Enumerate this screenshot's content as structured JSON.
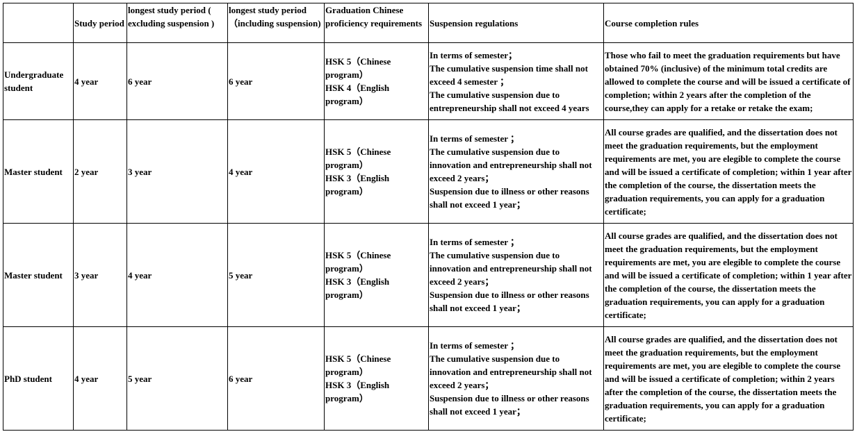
{
  "headers": [
    "",
    "Study period",
    "longest study period ( excluding suspension )",
    "longest study period （including suspension)",
    "Graduation Chinese proficiency requirements",
    "Suspension regulations",
    "Course completion rules"
  ],
  "rows": [
    {
      "type": "Undergraduate student",
      "study": "4 year",
      "excl": "6 year",
      "incl": "6 year",
      "hsk": [
        "HSK 5（Chinese program）",
        "HSK 4（English program）"
      ],
      "suspension": [
        "In terms of semester；",
        "The cumulative suspension time shall not exceed 4 semester ；",
        "The cumulative suspension due to entrepreneurship shall not exceed 4 years"
      ],
      "completion": "Those who fail to meet the graduation requirements but have obtained 70% (inclusive) of the minimum total credits are allowed to complete the course and will be issued a certificate of completion; within 2 years after the completion of the course,they can apply for a retake or retake the exam;"
    },
    {
      "type": "Master student",
      "study": "2 year",
      "excl": "3 year",
      "incl": "4 year",
      "hsk": [
        "HSK 5（Chinese program）",
        "HSK 3（English program）"
      ],
      "suspension": [
        "In terms of semester ；",
        "The cumulative suspension due to innovation and entrepreneurship shall not exceed 2 years；",
        "Suspension due to illness or other reasons shall not exceed 1 year；"
      ],
      "completion": "All course grades are qualified, and the dissertation does not meet the graduation requirements, but the employment requirements are met, you are elegible to complete the course and will be issued a certificate of completion; within 1 year after the completion of the course, the dissertation meets the graduation requirements,  you can apply for a graduation certificate;"
    },
    {
      "type": "Master student",
      "study": "3 year",
      "excl": "4 year",
      "incl": "5 year",
      "hsk": [
        "HSK 5（Chinese program）",
        "HSK 3（English program）"
      ],
      "suspension": [
        "In terms of semester ；",
        "The cumulative suspension due to innovation and entrepreneurship shall not exceed 2 years；",
        "Suspension due to illness or other reasons shall not exceed 1 year；"
      ],
      "completion": "All course grades are qualified, and the dissertation does not meet the graduation requirements, but the employment requirements are met, you are elegible to complete the course and will be issued a certificate of completion; within 1 year after the completion of the course, the dissertation meets the graduation requirements,  you can apply for a graduation certificate;"
    },
    {
      "type": "PhD student",
      "study": "4 year",
      "excl": "5 year",
      "incl": "6 year",
      "hsk": [
        "HSK 5（Chinese program）",
        "HSK 3（English program）"
      ],
      "suspension": [
        "In terms of semester ；",
        "The cumulative suspension due to innovation and entrepreneurship shall not exceed 2 years；",
        "Suspension due to illness or other reasons shall not exceed 1 year；"
      ],
      "completion": "All course grades are qualified, and the dissertation does not meet the graduation requirements, but the employment requirements are met, you are elegible to complete the course and will be issued a certificate of completion; within 2 years after the completion of the course, the dissertation meets the graduation requirements,  you can apply for a graduation certificate;"
    }
  ]
}
